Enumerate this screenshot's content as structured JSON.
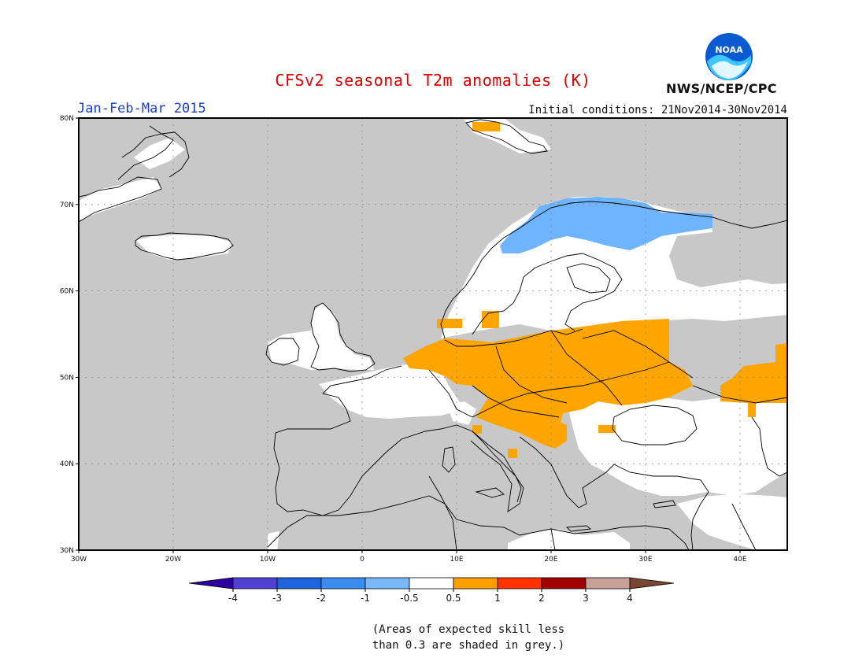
{
  "title": "CFSv2 seasonal T2m anomalies (K)",
  "period": "Jan-Feb-Mar 2015",
  "initial_conditions": "Initial conditions: 21Nov2014-30Nov2014",
  "organization": "NWS/NCEP/CPC",
  "logo_text": "NOAA",
  "caption_lines": [
    "(Areas of expected skill less",
    "than 0.3 are shaded in grey.)"
  ],
  "map": {
    "lon_range": [
      -30,
      45
    ],
    "lat_range": [
      30,
      80
    ],
    "lat_ticks": [
      {
        "value": 30,
        "label": "30N"
      },
      {
        "value": 40,
        "label": "40N"
      },
      {
        "value": 50,
        "label": "50N"
      },
      {
        "value": 60,
        "label": "60N"
      },
      {
        "value": 70,
        "label": "70N"
      },
      {
        "value": 80,
        "label": "80N"
      }
    ],
    "lon_ticks": [
      {
        "value": -30,
        "label": "30W"
      },
      {
        "value": -20,
        "label": "20W"
      },
      {
        "value": -10,
        "label": "10W"
      },
      {
        "value": 0,
        "label": "0"
      },
      {
        "value": 10,
        "label": "10E"
      },
      {
        "value": 20,
        "label": "20E"
      },
      {
        "value": 30,
        "label": "30E"
      },
      {
        "value": 40,
        "label": "40E"
      }
    ],
    "colors": {
      "no_skill": "#c8c8c8",
      "neutral": "#ffffff",
      "warm_0_5_1": "#ffa500",
      "cool_m1_m0_5": "#6eb4ff",
      "coast": "#000000"
    }
  },
  "colorbar": {
    "labels": [
      "-4",
      "-3",
      "-2",
      "-1",
      "-0.5",
      "0.5",
      "1",
      "2",
      "3",
      "4"
    ],
    "colors": [
      "#2d00a0",
      "#5041d2",
      "#1e64dc",
      "#3c8cf0",
      "#78b9fa",
      "#ffffff",
      "#ffa000",
      "#ff3200",
      "#a00000",
      "#c8a096",
      "#784632"
    ]
  }
}
